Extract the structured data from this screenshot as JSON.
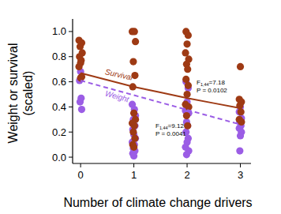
{
  "chart_data": {
    "type": "scatter",
    "x_label": "Number of climate change drivers",
    "y_label": [
      "Weight or survival",
      "(scaled)"
    ],
    "xlim": [
      -0.15,
      3.2
    ],
    "ylim": [
      -0.05,
      1.1
    ],
    "xticks": [
      0,
      1,
      2,
      3
    ],
    "yticks": [
      {
        "value": 0,
        "label": "0.0"
      },
      0.2,
      0.4,
      0.6,
      0.8,
      {
        "value": 1,
        "label": "1.0"
      }
    ],
    "grid": false,
    "series": [
      {
        "name": "Survival",
        "type": "line",
        "line_style": "solid",
        "color": "#9e3a14",
        "x": [
          0,
          0.5,
          1,
          1.5,
          2,
          2.5,
          3
        ],
        "values": [
          0.67,
          0.615,
          0.56,
          0.515,
          0.47,
          0.43,
          0.39
        ]
      },
      {
        "name": "Weight",
        "type": "line",
        "line_style": "dashed",
        "color": "#9b5de5",
        "x": [
          0,
          3
        ],
        "values": [
          0.61,
          0.26
        ]
      },
      {
        "type": "scatter",
        "marker": "circle",
        "color": "#9b5de5",
        "x": [
          0,
          -0.02,
          0.01,
          -0.01,
          0.02,
          0.97,
          1.01,
          1.03,
          0.99,
          1.02,
          0.98,
          1.0,
          1.03,
          0.97,
          1.01,
          0.99,
          1.02,
          0.98,
          1.0,
          1.98,
          2.02,
          2.0,
          1.97,
          2.03,
          1.99,
          2.01,
          1.98,
          2.02,
          2.0,
          1.97,
          2.03,
          1.99,
          3.0,
          2.98,
          3.02,
          2.99,
          3.01,
          2.98,
          3.02,
          3.0,
          2.99
        ],
        "values": [
          0.68,
          0.61,
          0.47,
          0.44,
          0.38,
          0.42,
          0.38,
          0.33,
          0.3,
          0.25,
          0.22,
          0.18,
          0.15,
          0.12,
          0.1,
          0.07,
          0.05,
          0.03,
          0.01,
          0.6,
          0.55,
          0.44,
          0.37,
          0.35,
          0.28,
          0.25,
          0.2,
          0.15,
          0.12,
          0.08,
          0.05,
          0.02,
          0.4,
          0.36,
          0.31,
          0.28,
          0.25,
          0.23,
          0.2,
          0.17,
          0.05
        ]
      },
      {
        "type": "scatter",
        "marker": "circle",
        "color": "#9e3a14",
        "x": [
          -0.03,
          0.02,
          -0.01,
          0.03,
          -0.02,
          0.01,
          0.0,
          -0.03,
          0.02,
          0.0,
          0.97,
          1.01,
          1.03,
          0.99,
          1.02,
          0.98,
          1.0,
          1.03,
          0.97,
          1.01,
          0.99,
          1.02,
          0.98,
          1.0,
          1.98,
          2.02,
          2.0,
          1.97,
          2.03,
          1.99,
          2.01,
          1.98,
          2.02,
          2.0,
          1.97,
          2.03,
          1.99,
          2.01,
          3.0,
          2.98,
          3.02,
          2.99,
          3.01,
          2.98,
          3.02
        ],
        "values": [
          0.93,
          0.91,
          0.88,
          0.83,
          0.8,
          0.77,
          0.75,
          0.72,
          0.64,
          0.63,
          1.0,
          1.0,
          0.92,
          0.76,
          0.65,
          0.56,
          0.35,
          0.3,
          0.27,
          0.25,
          0.2,
          0.15,
          0.1,
          0.08,
          1.0,
          0.97,
          0.9,
          0.83,
          0.78,
          0.74,
          0.7,
          0.62,
          0.57,
          0.5,
          0.42,
          0.4,
          0.33,
          0.25,
          0.72,
          0.46,
          0.44,
          0.41,
          0.36,
          0.3,
          0.28
        ]
      }
    ],
    "annotations": [
      {
        "text": "F1,44=7.18",
        "subscript": "1,44",
        "p_text": "P = 0.0102"
      },
      {
        "text": "F1,44=9.12",
        "subscript": "1,44",
        "p_text": "P = 0.0041"
      }
    ]
  }
}
